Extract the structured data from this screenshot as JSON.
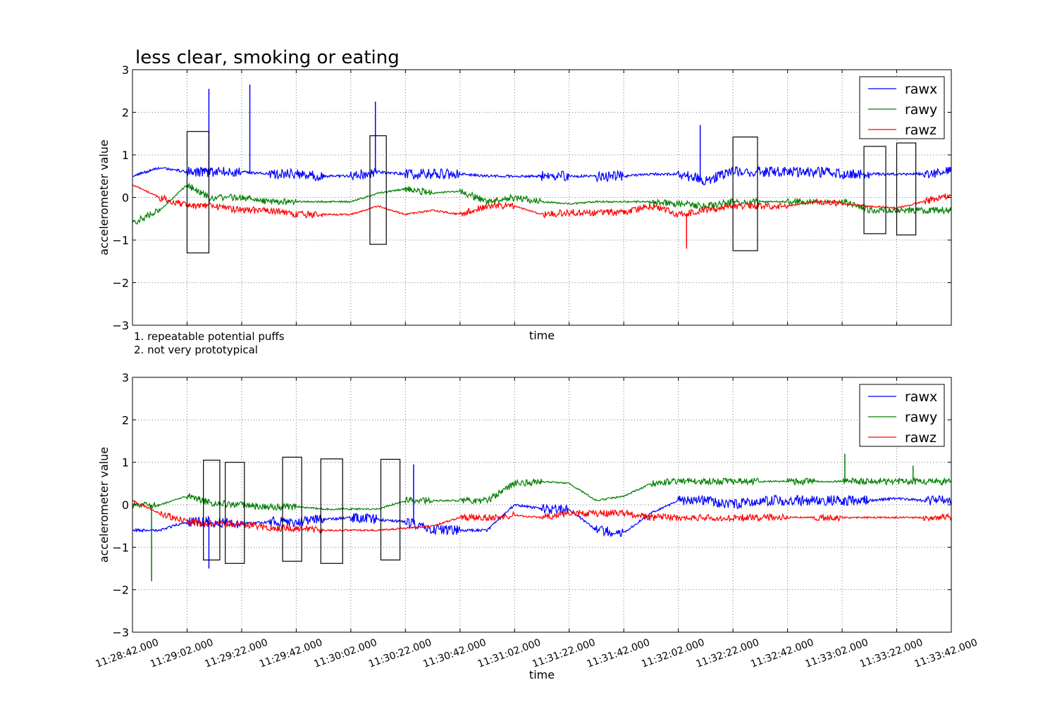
{
  "figure_title": "less clear, smoking or eating",
  "notes": [
    "1. repeatable potential puffs",
    "2. not very prototypical"
  ],
  "colors": {
    "rawx": "#0000ff",
    "rawy": "#008000",
    "rawz": "#ff0000",
    "grid": "#777777",
    "box": "#000000"
  },
  "chart_data": [
    {
      "type": "line",
      "title": "less clear, smoking or eating",
      "xlabel": "time",
      "ylabel": "accelerometer value",
      "ylim": [
        -3,
        3
      ],
      "xlim": [
        "11:28:42.000",
        "11:33:42.000"
      ],
      "x_ticks": [
        "11:28:42.000",
        "11:29:02.000",
        "11:29:22.000",
        "11:29:42.000",
        "11:30:02.000",
        "11:30:22.000",
        "11:30:42.000",
        "11:31:02.000",
        "11:31:22.000",
        "11:31:42.000",
        "11:32:02.000",
        "11:32:22.000",
        "11:32:42.000",
        "11:33:02.000",
        "11:33:22.000",
        "11:33:42.000"
      ],
      "x_ticklabels_shown": false,
      "y_ticks": [
        -3,
        -2,
        -1,
        0,
        1,
        2,
        3
      ],
      "grid": true,
      "legend": "top-right",
      "series": [
        {
          "name": "rawx",
          "color": "#0000ff",
          "x": [
            "11:28:42.000",
            "11:28:52.000",
            "11:29:02.000",
            "11:29:10.000",
            "11:29:22.000",
            "11:29:32.000",
            "11:29:42.000",
            "11:29:52.000",
            "11:30:02.000",
            "11:30:12.000",
            "11:30:22.000",
            "11:30:32.000",
            "11:30:42.000",
            "11:30:52.000",
            "11:31:02.000",
            "11:31:12.000",
            "11:31:22.000",
            "11:31:32.000",
            "11:31:42.000",
            "11:31:52.000",
            "11:32:02.000",
            "11:32:12.000",
            "11:32:22.000",
            "11:32:32.000",
            "11:32:42.000",
            "11:32:52.000",
            "11:33:02.000",
            "11:33:12.000",
            "11:33:22.000",
            "11:33:32.000",
            "11:33:42.000"
          ],
          "y": [
            0.5,
            0.7,
            0.6,
            0.6,
            0.6,
            0.55,
            0.55,
            0.5,
            0.5,
            0.6,
            0.55,
            0.55,
            0.55,
            0.5,
            0.5,
            0.5,
            0.5,
            0.5,
            0.5,
            0.55,
            0.55,
            0.4,
            0.6,
            0.6,
            0.6,
            0.6,
            0.55,
            0.55,
            0.55,
            0.55,
            0.6
          ]
        },
        {
          "name": "rawy",
          "color": "#008000",
          "x": [
            "11:28:42.000",
            "11:28:52.000",
            "11:29:02.000",
            "11:29:10.000",
            "11:29:22.000",
            "11:29:32.000",
            "11:29:42.000",
            "11:29:52.000",
            "11:30:02.000",
            "11:30:12.000",
            "11:30:22.000",
            "11:30:32.000",
            "11:30:42.000",
            "11:30:52.000",
            "11:31:02.000",
            "11:31:12.000",
            "11:31:22.000",
            "11:31:32.000",
            "11:31:42.000",
            "11:31:52.000",
            "11:32:02.000",
            "11:32:12.000",
            "11:32:22.000",
            "11:32:32.000",
            "11:32:42.000",
            "11:32:52.000",
            "11:33:02.000",
            "11:33:12.000",
            "11:33:22.000",
            "11:33:32.000",
            "11:33:42.000"
          ],
          "y": [
            -0.6,
            -0.3,
            0.3,
            0.0,
            0.0,
            -0.1,
            -0.1,
            -0.1,
            -0.1,
            0.1,
            0.2,
            0.1,
            0.15,
            -0.1,
            0.0,
            -0.1,
            -0.15,
            -0.1,
            -0.1,
            -0.1,
            -0.15,
            -0.2,
            -0.1,
            -0.1,
            -0.1,
            -0.1,
            -0.1,
            -0.3,
            -0.3,
            -0.3,
            -0.3
          ]
        },
        {
          "name": "rawz",
          "color": "#ff0000",
          "x": [
            "11:28:42.000",
            "11:28:52.000",
            "11:29:02.000",
            "11:29:10.000",
            "11:29:22.000",
            "11:29:32.000",
            "11:29:42.000",
            "11:29:52.000",
            "11:30:02.000",
            "11:30:12.000",
            "11:30:22.000",
            "11:30:32.000",
            "11:30:42.000",
            "11:30:52.000",
            "11:31:02.000",
            "11:31:12.000",
            "11:31:22.000",
            "11:31:32.000",
            "11:31:42.000",
            "11:31:52.000",
            "11:32:02.000",
            "11:32:12.000",
            "11:32:22.000",
            "11:32:32.000",
            "11:32:42.000",
            "11:32:52.000",
            "11:33:02.000",
            "11:33:12.000",
            "11:33:22.000",
            "11:33:32.000",
            "11:33:42.000"
          ],
          "y": [
            0.3,
            0.0,
            -0.2,
            -0.2,
            -0.3,
            -0.3,
            -0.4,
            -0.4,
            -0.4,
            -0.2,
            -0.4,
            -0.3,
            -0.4,
            -0.2,
            -0.2,
            -0.4,
            -0.35,
            -0.35,
            -0.35,
            -0.2,
            -0.4,
            -0.3,
            -0.2,
            -0.2,
            -0.2,
            -0.1,
            -0.15,
            -0.2,
            -0.25,
            -0.1,
            0.05
          ]
        }
      ],
      "boxes": [
        {
          "x0": "11:29:02.000",
          "x1": "11:29:10.000",
          "y0": -1.3,
          "y1": 1.55
        },
        {
          "x0": "11:30:09.000",
          "x1": "11:30:15.000",
          "y0": -1.1,
          "y1": 1.45
        },
        {
          "x0": "11:32:22.000",
          "x1": "11:32:31.000",
          "y0": -1.25,
          "y1": 1.42
        },
        {
          "x0": "11:33:10.000",
          "x1": "11:33:18.000",
          "y0": -0.85,
          "y1": 1.2
        },
        {
          "x0": "11:33:22.000",
          "x1": "11:33:29.000",
          "y0": -0.88,
          "y1": 1.28
        }
      ],
      "spikes": [
        {
          "x": "11:29:10.000",
          "y": 2.55,
          "series": "rawx"
        },
        {
          "x": "11:29:25.000",
          "y": 2.65,
          "series": "rawx"
        },
        {
          "x": "11:30:11.000",
          "y": 2.25,
          "series": "rawx"
        },
        {
          "x": "11:32:10.000",
          "y": 1.7,
          "series": "rawx"
        },
        {
          "x": "11:32:05.000",
          "y": -1.2,
          "series": "rawz"
        }
      ]
    },
    {
      "type": "line",
      "title": "",
      "xlabel": "time",
      "ylabel": "accelerometer value",
      "ylim": [
        -3,
        3
      ],
      "xlim": [
        "11:28:42.000",
        "11:33:42.000"
      ],
      "x_ticks": [
        "11:28:42.000",
        "11:29:02.000",
        "11:29:22.000",
        "11:29:42.000",
        "11:30:02.000",
        "11:30:22.000",
        "11:30:42.000",
        "11:31:02.000",
        "11:31:22.000",
        "11:31:42.000",
        "11:32:02.000",
        "11:32:22.000",
        "11:32:42.000",
        "11:33:02.000",
        "11:33:22.000",
        "11:33:42.000"
      ],
      "x_ticklabels_shown": true,
      "y_ticks": [
        -3,
        -2,
        -1,
        0,
        1,
        2,
        3
      ],
      "grid": true,
      "legend": "top-right",
      "series": [
        {
          "name": "rawx",
          "color": "#0000ff",
          "x": [
            "11:28:42.000",
            "11:28:52.000",
            "11:29:02.000",
            "11:29:10.000",
            "11:29:22.000",
            "11:29:32.000",
            "11:29:42.000",
            "11:29:52.000",
            "11:30:02.000",
            "11:30:12.000",
            "11:30:22.000",
            "11:30:32.000",
            "11:30:42.000",
            "11:30:52.000",
            "11:31:02.000",
            "11:31:12.000",
            "11:31:22.000",
            "11:31:32.000",
            "11:31:42.000",
            "11:31:52.000",
            "11:32:02.000",
            "11:32:12.000",
            "11:32:22.000",
            "11:32:32.000",
            "11:32:42.000",
            "11:32:52.000",
            "11:33:02.000",
            "11:33:12.000",
            "11:33:22.000",
            "11:33:32.000",
            "11:33:42.000"
          ],
          "y": [
            -0.6,
            -0.6,
            -0.4,
            -0.4,
            -0.45,
            -0.4,
            -0.4,
            -0.35,
            -0.3,
            -0.35,
            -0.4,
            -0.6,
            -0.6,
            -0.6,
            0.0,
            -0.1,
            -0.1,
            -0.6,
            -0.65,
            -0.2,
            0.1,
            0.1,
            0.0,
            0.1,
            0.1,
            0.1,
            0.1,
            0.1,
            0.15,
            0.1,
            0.1
          ]
        },
        {
          "name": "rawy",
          "color": "#008000",
          "x": [
            "11:28:42.000",
            "11:28:52.000",
            "11:29:02.000",
            "11:29:10.000",
            "11:29:22.000",
            "11:29:32.000",
            "11:29:42.000",
            "11:29:52.000",
            "11:30:02.000",
            "11:30:12.000",
            "11:30:22.000",
            "11:30:32.000",
            "11:30:42.000",
            "11:30:52.000",
            "11:31:02.000",
            "11:31:12.000",
            "11:31:22.000",
            "11:31:32.000",
            "11:31:42.000",
            "11:31:52.000",
            "11:32:02.000",
            "11:32:12.000",
            "11:32:22.000",
            "11:32:32.000",
            "11:32:42.000",
            "11:32:52.000",
            "11:33:02.000",
            "11:33:12.000",
            "11:33:22.000",
            "11:33:32.000",
            "11:33:42.000"
          ],
          "y": [
            0.0,
            0.0,
            0.2,
            0.05,
            0.0,
            -0.05,
            -0.05,
            -0.1,
            -0.1,
            -0.1,
            0.1,
            0.1,
            0.1,
            0.1,
            0.5,
            0.55,
            0.5,
            0.1,
            0.2,
            0.5,
            0.55,
            0.55,
            0.55,
            0.55,
            0.55,
            0.55,
            0.55,
            0.55,
            0.55,
            0.55,
            0.55
          ]
        },
        {
          "name": "rawz",
          "color": "#ff0000",
          "x": [
            "11:28:42.000",
            "11:28:52.000",
            "11:29:02.000",
            "11:29:10.000",
            "11:29:22.000",
            "11:29:32.000",
            "11:29:42.000",
            "11:29:52.000",
            "11:30:02.000",
            "11:30:12.000",
            "11:30:22.000",
            "11:30:32.000",
            "11:30:42.000",
            "11:30:52.000",
            "11:31:02.000",
            "11:31:12.000",
            "11:31:22.000",
            "11:31:32.000",
            "11:31:42.000",
            "11:31:52.000",
            "11:32:02.000",
            "11:32:12.000",
            "11:32:22.000",
            "11:32:32.000",
            "11:32:42.000",
            "11:32:52.000",
            "11:33:02.000",
            "11:33:12.000",
            "11:33:22.000",
            "11:33:32.000",
            "11:33:42.000"
          ],
          "y": [
            0.1,
            -0.2,
            -0.4,
            -0.45,
            -0.45,
            -0.55,
            -0.55,
            -0.6,
            -0.6,
            -0.6,
            -0.55,
            -0.5,
            -0.3,
            -0.3,
            -0.25,
            -0.3,
            -0.2,
            -0.2,
            -0.2,
            -0.3,
            -0.3,
            -0.3,
            -0.3,
            -0.3,
            -0.3,
            -0.3,
            -0.3,
            -0.3,
            -0.3,
            -0.3,
            -0.3
          ]
        }
      ],
      "boxes": [
        {
          "x0": "11:29:08.000",
          "x1": "11:29:14.000",
          "y0": -1.3,
          "y1": 1.05
        },
        {
          "x0": "11:29:16.000",
          "x1": "11:29:23.000",
          "y0": -1.38,
          "y1": 1.0
        },
        {
          "x0": "11:29:37.000",
          "x1": "11:29:44.000",
          "y0": -1.33,
          "y1": 1.12
        },
        {
          "x0": "11:29:51.000",
          "x1": "11:29:59.000",
          "y0": -1.38,
          "y1": 1.08
        },
        {
          "x0": "11:30:13.000",
          "x1": "11:30:20.000",
          "y0": -1.3,
          "y1": 1.07
        }
      ],
      "spikes": [
        {
          "x": "11:28:49.000",
          "y": -1.8,
          "series": "rawy"
        },
        {
          "x": "11:29:10.000",
          "y": -1.5,
          "series": "rawx"
        },
        {
          "x": "11:30:25.000",
          "y": 0.95,
          "series": "rawx"
        },
        {
          "x": "11:33:03.000",
          "y": 1.2,
          "series": "rawy"
        },
        {
          "x": "11:33:28.000",
          "y": 0.92,
          "series": "rawy"
        }
      ]
    }
  ]
}
